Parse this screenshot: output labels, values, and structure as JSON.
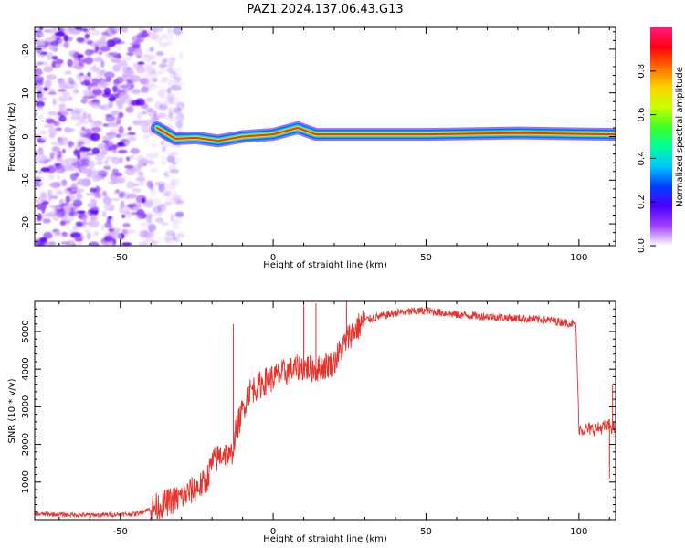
{
  "figure_title": "PAZ1.2024.137.06.43.G13",
  "colors": {
    "snr_line": "#e8312b",
    "spectrum_band_core": "#ff2a1f",
    "speckle": "#8a2be2",
    "colorbar_stops": [
      "#ffffff",
      "#a040ff",
      "#4b00ff",
      "#0040ff",
      "#00c8ff",
      "#00ff9a",
      "#40ff20",
      "#c8ff00",
      "#ffd000",
      "#ff6a00",
      "#ff0010",
      "#ff1a80"
    ]
  },
  "chart_data": [
    {
      "type": "heatmap",
      "title": "",
      "xlabel": "Height of straight line (km)",
      "ylabel": "Frequency (Hz)",
      "xlim": [
        -78,
        112
      ],
      "ylim": [
        -25,
        25
      ],
      "x_ticks": [
        -50,
        0,
        50,
        100
      ],
      "y_ticks": [
        -20,
        -10,
        0,
        10,
        20
      ],
      "colorbar": {
        "label": "Normalized spectral amplitude",
        "range": [
          0,
          1
        ],
        "ticks": [
          0.0,
          0.2,
          0.4,
          0.6,
          0.8
        ]
      },
      "signal_band": {
        "noise_region_end_km": -38,
        "frequency_track": [
          {
            "x": -38,
            "y": 2.0
          },
          {
            "x": -32,
            "y": -0.5
          },
          {
            "x": -25,
            "y": -0.3
          },
          {
            "x": -18,
            "y": -1.0
          },
          {
            "x": -10,
            "y": 0.0
          },
          {
            "x": 0,
            "y": 0.5
          },
          {
            "x": 8,
            "y": 2.0
          },
          {
            "x": 14,
            "y": 0.5
          },
          {
            "x": 50,
            "y": 0.5
          },
          {
            "x": 80,
            "y": 0.8
          },
          {
            "x": 112,
            "y": 0.5
          }
        ]
      }
    },
    {
      "type": "line",
      "title": "",
      "xlabel": "Height of straight line (km)",
      "ylabel": "SNR (10 * v/v)",
      "xlim": [
        -78,
        112
      ],
      "ylim": [
        0,
        5800
      ],
      "x_ticks": [
        -50,
        0,
        50,
        100
      ],
      "y_ticks": [
        1000,
        2000,
        3000,
        4000,
        5000
      ],
      "series": [
        {
          "x": [
            -78,
            -60,
            -45,
            -38,
            -30,
            -22,
            -20,
            -16,
            -14,
            -12,
            -8,
            -2,
            5,
            10,
            15,
            20,
            25,
            30,
            40,
            50,
            60,
            70,
            80,
            90,
            99,
            100,
            101,
            105,
            110,
            112
          ],
          "values": [
            150,
            120,
            150,
            350,
            600,
            1000,
            1500,
            1800,
            1600,
            2400,
            3400,
            3700,
            3950,
            4050,
            4000,
            4200,
            4900,
            5300,
            5500,
            5550,
            5450,
            5400,
            5350,
            5300,
            5200,
            2450,
            2400,
            2400,
            2500,
            2400
          ]
        }
      ],
      "spikes": [
        {
          "x": -13,
          "y": 5200
        },
        {
          "x": 10,
          "y": 5750
        },
        {
          "x": 14,
          "y": 5750
        },
        {
          "x": 24,
          "y": 5800
        },
        {
          "x": 111,
          "y": 3600
        },
        {
          "x": 110,
          "y": 1100
        }
      ]
    }
  ]
}
